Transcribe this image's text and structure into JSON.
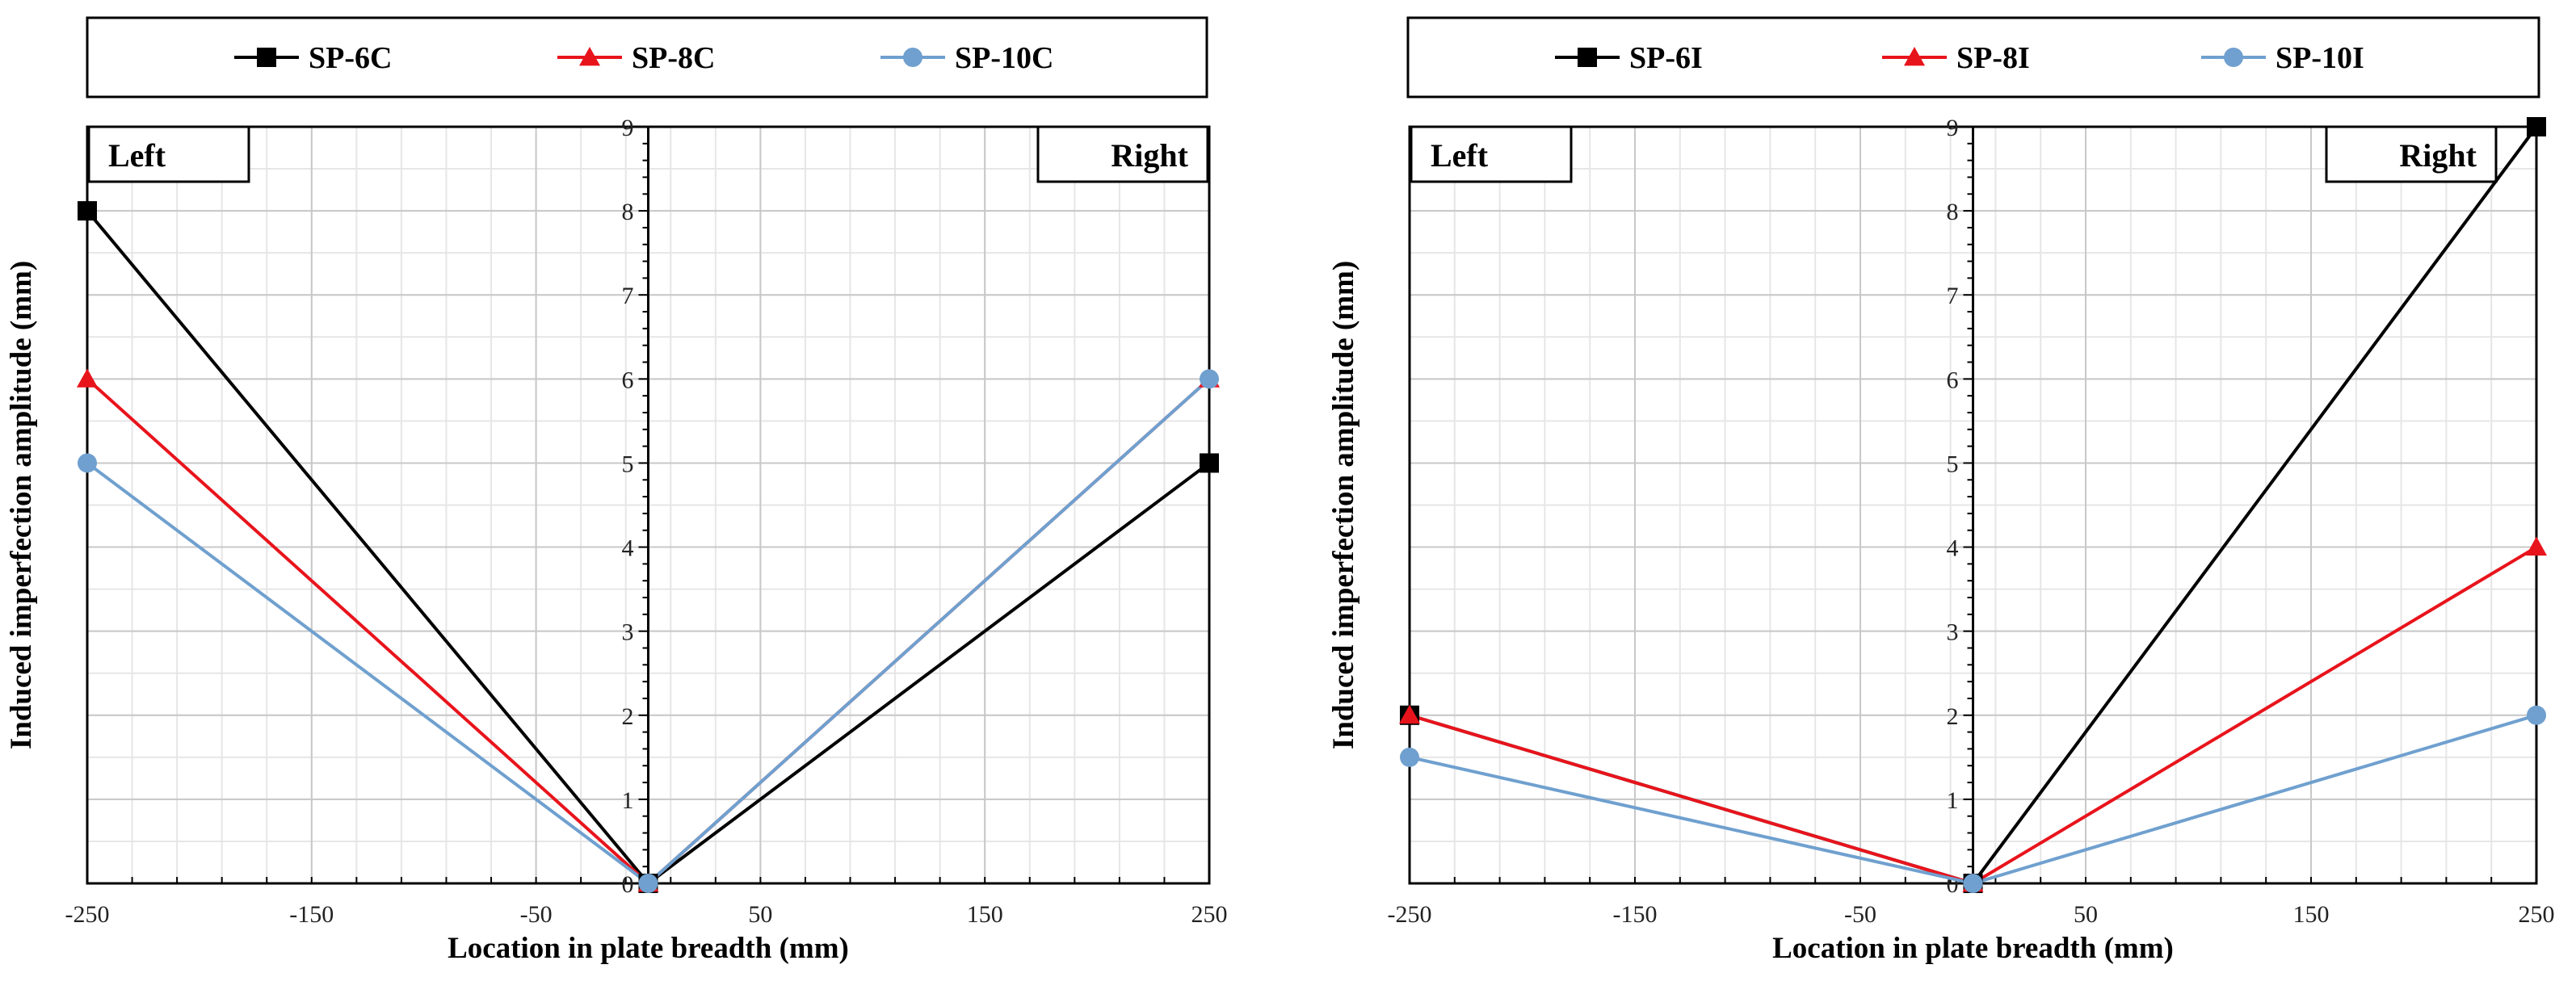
{
  "chart_data": [
    {
      "type": "line",
      "title": "",
      "xlabel": "Location in plate breadth (mm)",
      "ylabel": "Induced imperfection amplitude (mm)",
      "xlim": [
        -250,
        250
      ],
      "ylim": [
        0,
        9
      ],
      "x_ticks": [
        -250,
        -150,
        -50,
        50,
        150,
        250
      ],
      "y_ticks": [
        0,
        1,
        2,
        3,
        4,
        5,
        6,
        7,
        8,
        9
      ],
      "grid": true,
      "tags": {
        "left": "Left",
        "right": "Right"
      },
      "series": [
        {
          "name": "SP-6C",
          "color": "#000000",
          "marker": "square",
          "x": [
            -250,
            0,
            250
          ],
          "y": [
            8,
            0,
            5
          ]
        },
        {
          "name": "SP-8C",
          "color": "#e8141c",
          "marker": "triangle",
          "x": [
            -250,
            0,
            250
          ],
          "y": [
            6,
            0,
            6
          ]
        },
        {
          "name": "SP-10C",
          "color": "#6fa0cf",
          "marker": "circle",
          "x": [
            -250,
            0,
            250
          ],
          "y": [
            5,
            0,
            6
          ]
        }
      ]
    },
    {
      "type": "line",
      "title": "",
      "xlabel": "Location in plate breadth (mm)",
      "ylabel": "Induced imperfection amplitude (mm)",
      "xlim": [
        -250,
        250
      ],
      "ylim": [
        0,
        9
      ],
      "x_ticks": [
        -250,
        -150,
        -50,
        50,
        150,
        250
      ],
      "y_ticks": [
        0,
        1,
        2,
        3,
        4,
        5,
        6,
        7,
        8,
        9
      ],
      "grid": true,
      "tags": {
        "left": "Left",
        "right": "Right"
      },
      "series": [
        {
          "name": "SP-6I",
          "color": "#000000",
          "marker": "square",
          "x": [
            -250,
            0,
            250
          ],
          "y": [
            2,
            0,
            9
          ]
        },
        {
          "name": "SP-8I",
          "color": "#e8141c",
          "marker": "triangle",
          "x": [
            -250,
            0,
            250
          ],
          "y": [
            2,
            0,
            4
          ]
        },
        {
          "name": "SP-10I",
          "color": "#6fa0cf",
          "marker": "circle",
          "x": [
            -250,
            0,
            250
          ],
          "y": [
            1.5,
            0,
            2
          ]
        }
      ]
    }
  ]
}
